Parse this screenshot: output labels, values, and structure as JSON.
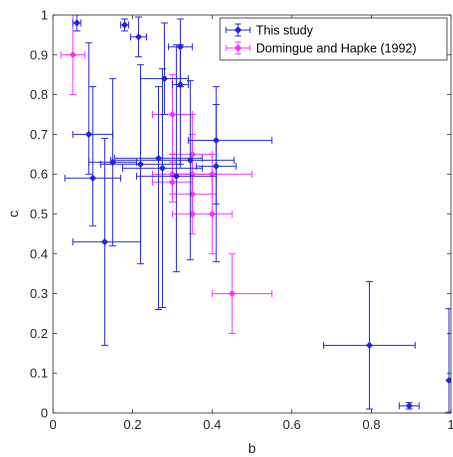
{
  "chart_data": {
    "type": "scatter",
    "xlabel": "b",
    "ylabel": "c",
    "xlim": [
      0,
      1
    ],
    "ylim": [
      0,
      1
    ],
    "xticks": [
      "0",
      "0.2",
      "0.4",
      "0.6",
      "0.8",
      "1"
    ],
    "yticks": [
      "0",
      "0.1",
      "0.2",
      "0.3",
      "0.4",
      "0.5",
      "0.6",
      "0.7",
      "0.8",
      "0.9",
      "1"
    ],
    "grid": false,
    "legend_position": "top-right",
    "series": [
      {
        "name": "This study",
        "color": "#2424e0",
        "marker": "diamond",
        "points": [
          {
            "x": 0.06,
            "y": 0.98,
            "xerr": [
              0.01,
              0.01
            ],
            "yerr": [
              0.02,
              0.02
            ]
          },
          {
            "x": 0.18,
            "y": 0.975,
            "xerr": [
              0.01,
              0.01
            ],
            "yerr": [
              0.015,
              0.015
            ]
          },
          {
            "x": 0.215,
            "y": 0.945,
            "xerr": [
              0.02,
              0.02
            ],
            "yerr": [
              0.05,
              0.05
            ]
          },
          {
            "x": 0.32,
            "y": 0.92,
            "xerr": [
              0.03,
              0.03
            ],
            "yerr": [
              0.1,
              0.07
            ]
          },
          {
            "x": 0.28,
            "y": 0.84,
            "xerr": [
              0.06,
              0.06
            ],
            "yerr": [
              0.09,
              0.14
            ]
          },
          {
            "x": 0.32,
            "y": 0.825,
            "xerr": [
              0.02,
              0.02
            ],
            "yerr": [
              0.2,
              0.1
            ]
          },
          {
            "x": 0.09,
            "y": 0.7,
            "xerr": [
              0.04,
              0.06
            ],
            "yerr": [
              0.1,
              0.23
            ]
          },
          {
            "x": 0.41,
            "y": 0.685,
            "xerr": [
              0.07,
              0.14
            ],
            "yerr": [
              0.16,
              0.09
            ]
          },
          {
            "x": 0.265,
            "y": 0.64,
            "xerr": [
              0.11,
              0.11
            ],
            "yerr": [
              0.38,
              0.18
            ]
          },
          {
            "x": 0.345,
            "y": 0.635,
            "xerr": [
              0.2,
              0.11
            ],
            "yerr": [
              0.25,
              0.2
            ]
          },
          {
            "x": 0.15,
            "y": 0.63,
            "xerr": [
              0.06,
              0.06
            ],
            "yerr": [
              0.21,
              0.21
            ]
          },
          {
            "x": 0.22,
            "y": 0.625,
            "xerr": [
              0.1,
              0.1
            ],
            "yerr": [
              0.25,
              0.25
            ]
          },
          {
            "x": 0.41,
            "y": 0.62,
            "xerr": [
              0.05,
              0.05
            ],
            "yerr": [
              0.24,
              0.2
            ]
          },
          {
            "x": 0.275,
            "y": 0.615,
            "xerr": [
              0.1,
              0.1
            ],
            "yerr": [
              0.35,
              0.25
            ]
          },
          {
            "x": 0.1,
            "y": 0.59,
            "xerr": [
              0.07,
              0.07
            ],
            "yerr": [
              0.12,
              0.23
            ]
          },
          {
            "x": 0.31,
            "y": 0.595,
            "xerr": [
              0.1,
              0.1
            ],
            "yerr": [
              0.24,
              0.33
            ]
          },
          {
            "x": 0.13,
            "y": 0.43,
            "xerr": [
              0.08,
              0.09
            ],
            "yerr": [
              0.26,
              0.26
            ]
          },
          {
            "x": 0.795,
            "y": 0.17,
            "xerr": [
              0.115,
              0.115
            ],
            "yerr": [
              0.16,
              0.16
            ]
          },
          {
            "x": 0.895,
            "y": 0.018,
            "xerr": [
              0.025,
              0.025
            ],
            "yerr": [
              0.008,
              0.008
            ]
          },
          {
            "x": 0.995,
            "y": 0.082,
            "xerr": [
              0.0,
              0.005
            ],
            "yerr": [
              0.08,
              0.18
            ]
          }
        ]
      },
      {
        "name": "Domingue and Hapke (1992)",
        "color": "#ff2eff",
        "marker": "diamond",
        "points": [
          {
            "x": 0.05,
            "y": 0.9,
            "xerr": [
              0.03,
              0.03
            ],
            "yerr": [
              0.1,
              0.1
            ]
          },
          {
            "x": 0.3,
            "y": 0.75,
            "xerr": [
              0.05,
              0.05
            ],
            "yerr": [
              0.1,
              0.1
            ]
          },
          {
            "x": 0.35,
            "y": 0.65,
            "xerr": [
              0.05,
              0.05
            ],
            "yerr": [
              0.1,
              0.1
            ]
          },
          {
            "x": 0.4,
            "y": 0.6,
            "xerr": [
              0.1,
              0.1
            ],
            "yerr": [
              0.05,
              0.05
            ]
          },
          {
            "x": 0.3,
            "y": 0.6,
            "xerr": [
              0.05,
              0.05
            ],
            "yerr": [
              0.05,
              0.05
            ]
          },
          {
            "x": 0.35,
            "y": 0.6,
            "xerr": [
              0.05,
              0.05
            ],
            "yerr": [
              0.1,
              0.1
            ]
          },
          {
            "x": 0.3,
            "y": 0.58,
            "xerr": [
              0.05,
              0.05
            ],
            "yerr": [
              0.05,
              0.05
            ]
          },
          {
            "x": 0.35,
            "y": 0.55,
            "xerr": [
              0.05,
              0.05
            ],
            "yerr": [
              0.05,
              0.05
            ]
          },
          {
            "x": 0.35,
            "y": 0.5,
            "xerr": [
              0.05,
              0.05
            ],
            "yerr": [
              0.05,
              0.05
            ]
          },
          {
            "x": 0.4,
            "y": 0.5,
            "xerr": [
              0.05,
              0.05
            ],
            "yerr": [
              0.1,
              0.1
            ]
          },
          {
            "x": 0.45,
            "y": 0.3,
            "xerr": [
              0.05,
              0.1
            ],
            "yerr": [
              0.1,
              0.1
            ]
          }
        ]
      }
    ]
  }
}
